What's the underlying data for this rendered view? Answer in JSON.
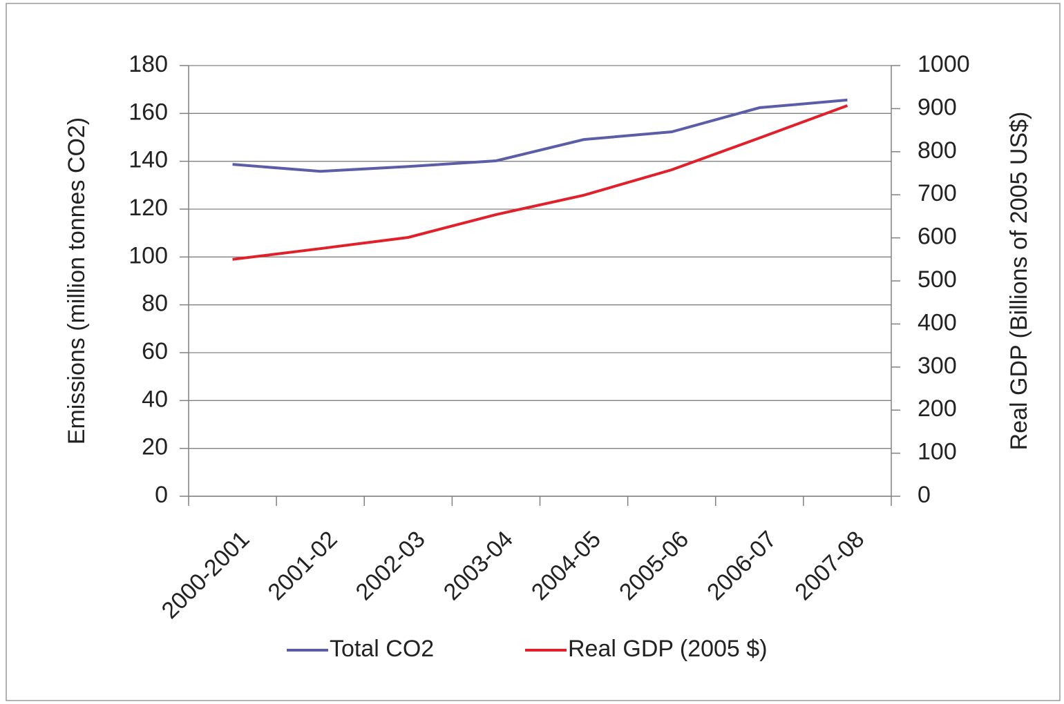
{
  "chart_data": {
    "type": "line",
    "categories": [
      "2000-2001",
      "2001-02",
      "2002-03",
      "2003-04",
      "2004-05",
      "2005-06",
      "2006-07",
      "2007-08"
    ],
    "y_label": "Emissions (million tonnes CO2)",
    "y2_label": "Real GDP (Billions of 2005 US$)",
    "series": [
      {
        "name": "Total CO2",
        "color": "#5b5ea6",
        "values": [
          138.7,
          135.8,
          137.8,
          140.2,
          149.1,
          152.3,
          162.4,
          165.6
        ]
      },
      {
        "name": "Real GDP (2005 $)",
        "color": "#e0202a",
        "axis": "y2",
        "values": [
          550,
          575,
          601,
          654,
          699,
          758,
          832,
          907
        ]
      }
    ],
    "ylim": [
      0,
      180
    ],
    "yticks": [
      0,
      20,
      40,
      60,
      80,
      100,
      120,
      140,
      160,
      180
    ],
    "y2lim": [
      0,
      1000
    ],
    "y2ticks": [
      0,
      100,
      200,
      300,
      400,
      500,
      600,
      700,
      800,
      900,
      1000
    ],
    "grid": true,
    "legend": "bottom"
  }
}
